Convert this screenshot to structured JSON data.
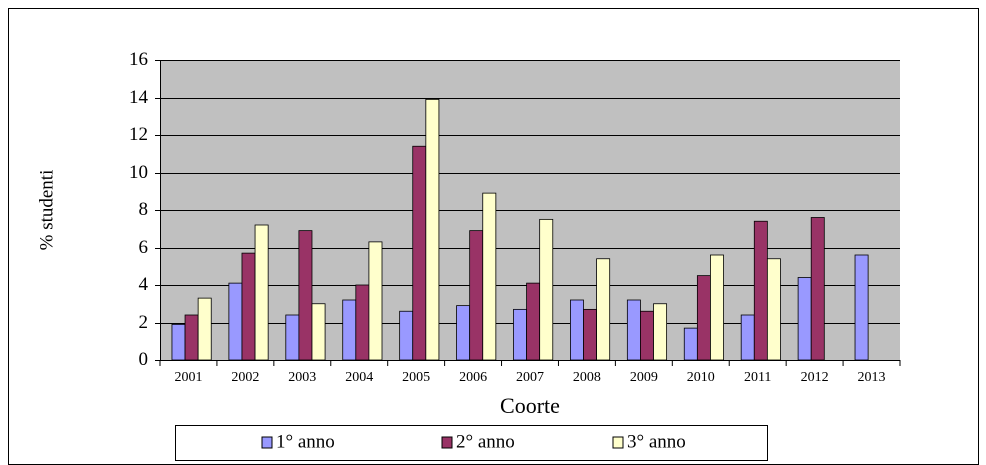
{
  "chart_data": {
    "type": "bar",
    "x_label": "Coorte",
    "y_label": "% studenti",
    "categories": [
      "2001",
      "2002",
      "2003",
      "2004",
      "2005",
      "2006",
      "2007",
      "2008",
      "2009",
      "2010",
      "2011",
      "2012",
      "2013"
    ],
    "series": [
      {
        "name": "1° anno",
        "color": "#9999ff",
        "values": [
          1.9,
          4.1,
          2.4,
          3.2,
          2.6,
          2.9,
          2.7,
          3.2,
          3.2,
          1.7,
          2.4,
          4.4,
          5.6
        ]
      },
      {
        "name": "2° anno",
        "color": "#993366",
        "values": [
          2.4,
          5.7,
          6.9,
          4.0,
          11.4,
          6.9,
          4.1,
          2.7,
          2.6,
          4.5,
          7.4,
          7.6,
          null
        ]
      },
      {
        "name": "3° anno",
        "color": "#ffffcc",
        "values": [
          3.3,
          7.2,
          3.0,
          6.3,
          13.9,
          8.9,
          7.5,
          5.4,
          3.0,
          5.6,
          5.4,
          null,
          null
        ]
      }
    ],
    "ylim": [
      0,
      16
    ],
    "yticks": [
      0,
      2,
      4,
      6,
      8,
      10,
      12,
      14,
      16
    ],
    "grid": true,
    "legend": "bottom"
  }
}
